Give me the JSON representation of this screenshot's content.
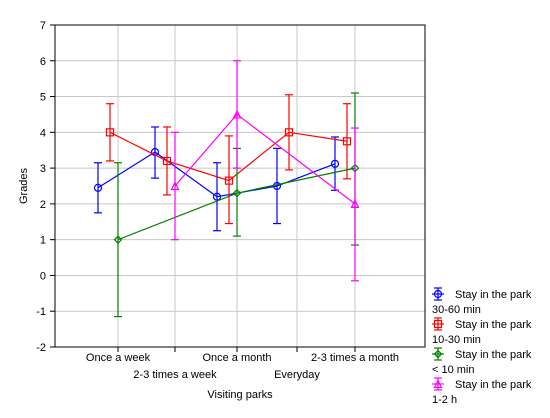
{
  "chart_data": {
    "type": "line",
    "xlabel": "Visiting parks",
    "ylabel": "Grades",
    "ylim": [
      -2,
      7
    ],
    "yticks": [
      -2,
      -1,
      0,
      1,
      2,
      3,
      4,
      5,
      6,
      7
    ],
    "grid": true,
    "legend_position": "bottom-right",
    "categories": [
      "Once a week",
      "2-3 times a week",
      "Once a month",
      "Everyday",
      "2-3 times a month"
    ],
    "series": [
      {
        "name": "Stay in the park 30-60 min",
        "legend_lines": [
          "Stay in the park",
          "30-60 min"
        ],
        "color": "#0000ff",
        "marker": "circle",
        "values": [
          2.45,
          3.45,
          2.2,
          2.5,
          3.12
        ],
        "lower": [
          1.75,
          2.72,
          1.25,
          1.45,
          2.38
        ],
        "upper": [
          3.15,
          4.15,
          3.15,
          3.55,
          3.87
        ]
      },
      {
        "name": "Stay in the park 10-30 min",
        "legend_lines": [
          "Stay in the park",
          "10-30 min"
        ],
        "color": "#ff0000",
        "marker": "square",
        "values": [
          4.0,
          3.2,
          2.65,
          4.0,
          3.75
        ],
        "lower": [
          3.2,
          2.25,
          1.45,
          2.95,
          2.7
        ],
        "upper": [
          4.8,
          4.15,
          3.9,
          5.05,
          4.8
        ]
      },
      {
        "name": "Stay in the park < 10 min",
        "legend_lines": [
          "Stay in the park",
          "< 10 min"
        ],
        "color": "#008000",
        "marker": "diamond",
        "values": [
          1.0,
          null,
          2.3,
          null,
          3.0
        ],
        "lower": [
          -1.15,
          null,
          1.1,
          null,
          0.85
        ],
        "upper": [
          3.15,
          null,
          3.55,
          null,
          5.1
        ]
      },
      {
        "name": "Stay in the park 1-2 h",
        "legend_lines": [
          "Stay in the park",
          "1-2 h"
        ],
        "color": "#ff00ff",
        "marker": "triangle",
        "values": [
          null,
          2.5,
          4.5,
          null,
          2.0
        ],
        "lower": [
          null,
          1.0,
          3.0,
          null,
          -0.15
        ],
        "upper": [
          null,
          4.0,
          6.0,
          null,
          4.12
        ]
      }
    ]
  }
}
